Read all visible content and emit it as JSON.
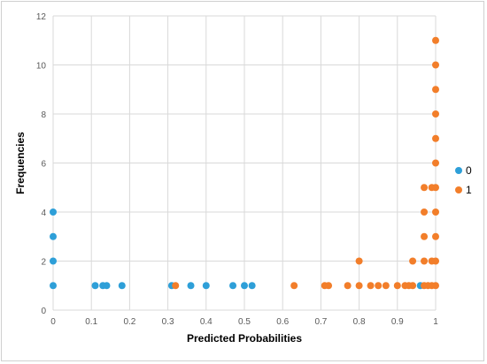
{
  "chart_data": {
    "type": "scatter",
    "title": "",
    "xlabel": "Predicted Probabilities",
    "ylabel": "Frequencies",
    "xlim": [
      0,
      1
    ],
    "ylim": [
      0,
      12
    ],
    "x_ticks": [
      "0",
      "0.1",
      "0.2",
      "0.3",
      "0.4",
      "0.5",
      "0.6",
      "0.7",
      "0.8",
      "0.9",
      "1"
    ],
    "y_ticks": [
      "0",
      "2",
      "4",
      "6",
      "8",
      "10",
      "12"
    ],
    "grid": "vertical and horizontal major gridlines",
    "legend_position": "right",
    "series": [
      {
        "name": "0",
        "color": "#2e9fd8",
        "points": [
          [
            0,
            1
          ],
          [
            0,
            2
          ],
          [
            0,
            3
          ],
          [
            0,
            4
          ],
          [
            0.11,
            1
          ],
          [
            0.13,
            1
          ],
          [
            0.14,
            1
          ],
          [
            0.18,
            1
          ],
          [
            0.31,
            1
          ],
          [
            0.36,
            1
          ],
          [
            0.4,
            1
          ],
          [
            0.47,
            1
          ],
          [
            0.5,
            1
          ],
          [
            0.52,
            1
          ],
          [
            0.96,
            1
          ]
        ]
      },
      {
        "name": "1",
        "color": "#f27e2a",
        "points": [
          [
            0.32,
            1
          ],
          [
            0.63,
            1
          ],
          [
            0.71,
            1
          ],
          [
            0.72,
            1
          ],
          [
            0.77,
            1
          ],
          [
            0.8,
            1
          ],
          [
            0.8,
            2
          ],
          [
            0.83,
            1
          ],
          [
            0.85,
            1
          ],
          [
            0.87,
            1
          ],
          [
            0.9,
            1
          ],
          [
            0.92,
            1
          ],
          [
            0.93,
            1
          ],
          [
            0.94,
            1
          ],
          [
            0.94,
            2
          ],
          [
            0.97,
            1
          ],
          [
            0.97,
            2
          ],
          [
            0.97,
            3
          ],
          [
            0.97,
            4
          ],
          [
            0.97,
            5
          ],
          [
            0.98,
            1
          ],
          [
            0.99,
            1
          ],
          [
            0.99,
            2
          ],
          [
            0.99,
            5
          ],
          [
            1,
            1
          ],
          [
            1,
            2
          ],
          [
            1,
            3
          ],
          [
            1,
            4
          ],
          [
            1,
            5
          ],
          [
            1,
            6
          ],
          [
            1,
            7
          ],
          [
            1,
            8
          ],
          [
            1,
            9
          ],
          [
            1,
            10
          ],
          [
            1,
            11
          ]
        ]
      }
    ]
  }
}
